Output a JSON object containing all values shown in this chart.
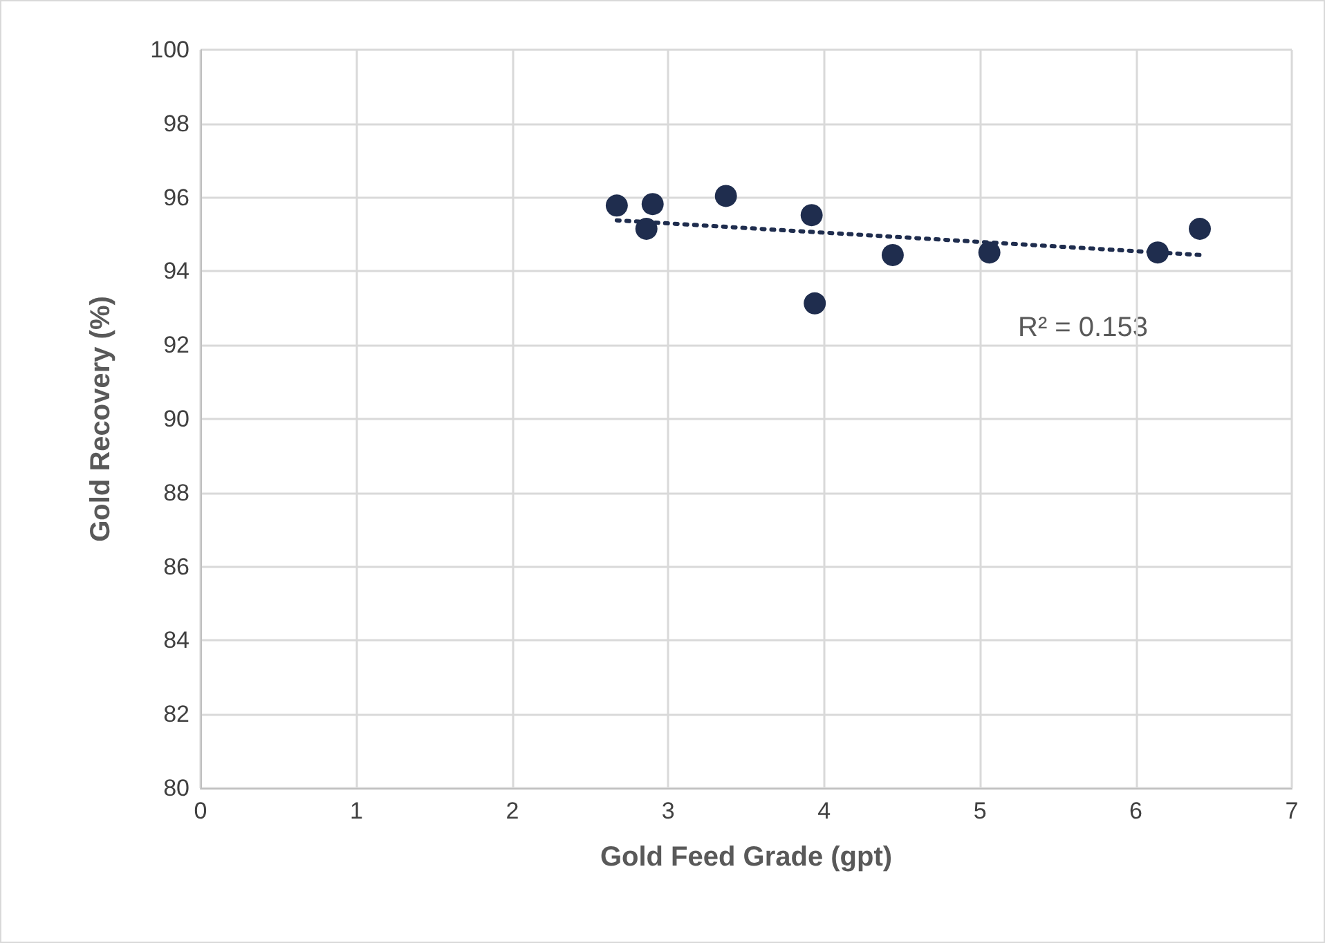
{
  "chart_data": {
    "type": "scatter",
    "xlabel": "Gold Feed Grade (gpt)",
    "ylabel": "Gold Recovery (%)",
    "series": [
      {
        "color": "#1f2d4e",
        "x": [
          2.67,
          2.86,
          2.9,
          3.37,
          3.92,
          3.94,
          4.44,
          5.06,
          6.14,
          6.41
        ],
        "values": [
          95.78,
          95.15,
          95.82,
          96.04,
          95.52,
          93.13,
          94.44,
          94.51,
          94.51,
          95.15
        ]
      },
      {
        "type": "line",
        "color": "#1f2d4e",
        "line_style": "dotted",
        "marker": "none",
        "x": [
          2.67,
          6.42
        ],
        "values": [
          95.38,
          94.44
        ]
      }
    ],
    "annotations": [
      "R² = 0.153"
    ],
    "xlim": [
      0,
      7
    ],
    "xticks": [
      0,
      1,
      2,
      3,
      4,
      5,
      6,
      7
    ],
    "ylim": [
      80,
      100
    ],
    "yticks": [
      80,
      82,
      84,
      86,
      88,
      90,
      92,
      94,
      96,
      98,
      100
    ],
    "grid": true,
    "marker": "circle"
  }
}
